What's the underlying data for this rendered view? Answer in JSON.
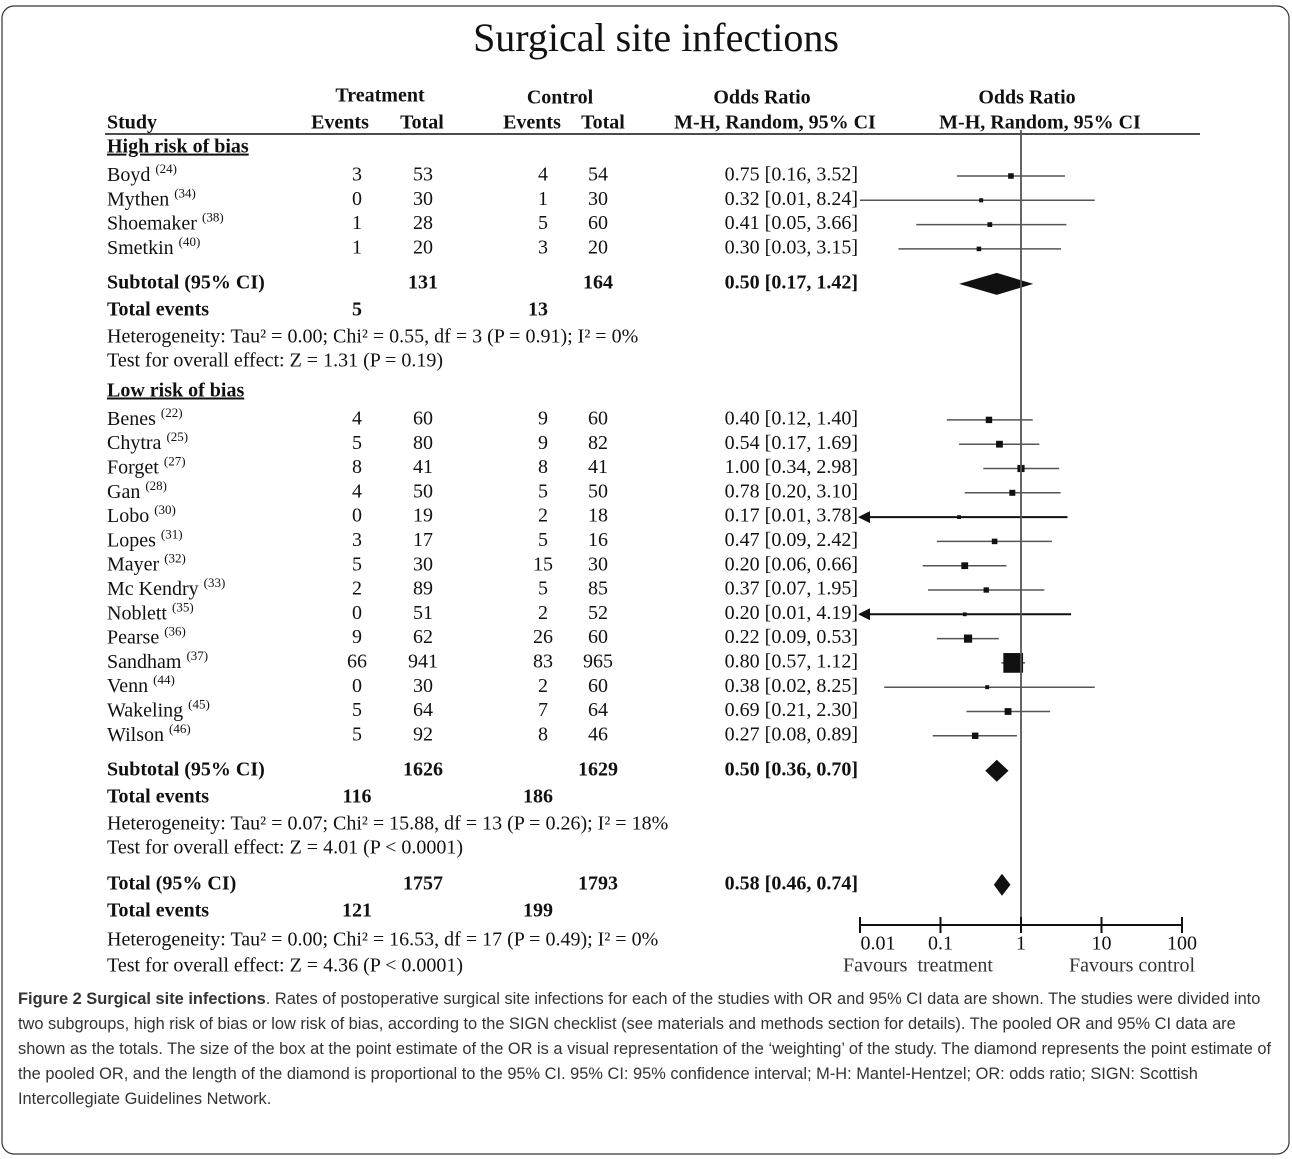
{
  "chart_data": {
    "type": "forest",
    "title": "Surgical site infections",
    "headers": {
      "study": "Study",
      "treatment": "Treatment",
      "control": "Control",
      "events": "Events",
      "total": "Total",
      "or_title": "Odds Ratio",
      "or_method": "M-H, Random, 95% CI"
    },
    "groups": [
      {
        "name": "High risk of bias",
        "studies": [
          {
            "name": "Boyd",
            "ref": "(24)",
            "t_events": 3,
            "t_total": 53,
            "c_events": 4,
            "c_total": 54,
            "or": 0.75,
            "ci": [
              0.16,
              3.52
            ],
            "value_label": "0.75 [0.16, 3.52]",
            "weight": 3
          },
          {
            "name": "Mythen",
            "ref": "(34)",
            "t_events": 0,
            "t_total": 30,
            "c_events": 1,
            "c_total": 30,
            "or": 0.32,
            "ci": [
              0.01,
              8.24
            ],
            "value_label": "0.32 [0.01, 8.24]",
            "weight": 1.6
          },
          {
            "name": "Shoemaker",
            "ref": "(38)",
            "t_events": 1,
            "t_total": 28,
            "c_events": 5,
            "c_total": 60,
            "or": 0.41,
            "ci": [
              0.05,
              3.66
            ],
            "value_label": "0.41 [0.05, 3.66]",
            "weight": 2.2
          },
          {
            "name": "Smetkin",
            "ref": "(40)",
            "t_events": 1,
            "t_total": 20,
            "c_events": 3,
            "c_total": 20,
            "or": 0.3,
            "ci": [
              0.03,
              3.15
            ],
            "value_label": "0.30 [0.03, 3.15]",
            "weight": 2
          }
        ],
        "subtotal": {
          "label": "Subtotal (95% CI)",
          "t_total": 131,
          "c_total": 164,
          "or": 0.5,
          "ci": [
            0.17,
            1.42
          ],
          "value_label": "0.50 [0.17, 1.42]"
        },
        "events": {
          "label": "Total events",
          "t": 5,
          "c": 13
        },
        "heterogeneity": "Heterogeneity: Tau² = 0.00; Chi² = 0.55, df = 3 (P = 0.91); I² = 0%",
        "overall_test": "Test for overall effect: Z = 1.31 (P = 0.19)"
      },
      {
        "name": "Low risk of bias",
        "studies": [
          {
            "name": "Benes",
            "ref": "(22)",
            "t_events": 4,
            "t_total": 60,
            "c_events": 9,
            "c_total": 60,
            "or": 0.4,
            "ci": [
              0.12,
              1.4
            ],
            "value_label": "0.40 [0.12, 1.40]",
            "weight": 4
          },
          {
            "name": "Chytra",
            "ref": "(25)",
            "t_events": 5,
            "t_total": 80,
            "c_events": 9,
            "c_total": 82,
            "or": 0.54,
            "ci": [
              0.17,
              1.69
            ],
            "value_label": "0.54 [0.17, 1.69]",
            "weight": 4.5
          },
          {
            "name": "Forget",
            "ref": "(27)",
            "t_events": 8,
            "t_total": 41,
            "c_events": 8,
            "c_total": 41,
            "or": 1.0,
            "ci": [
              0.34,
              2.98
            ],
            "value_label": "1.00 [0.34, 2.98]",
            "weight": 5
          },
          {
            "name": "Gan",
            "ref": "(28)",
            "t_events": 4,
            "t_total": 50,
            "c_events": 5,
            "c_total": 50,
            "or": 0.78,
            "ci": [
              0.2,
              3.1
            ],
            "value_label": "0.78 [0.20, 3.10]",
            "weight": 3.5
          },
          {
            "name": "Lobo",
            "ref": "(30)",
            "t_events": 0,
            "t_total": 19,
            "c_events": 2,
            "c_total": 18,
            "or": 0.17,
            "ci": [
              0.01,
              3.78
            ],
            "value_label": "0.17 [0.01, 3.78]",
            "weight": 1.4,
            "arrow": "left"
          },
          {
            "name": "Lopes",
            "ref": "(31)",
            "t_events": 3,
            "t_total": 17,
            "c_events": 5,
            "c_total": 16,
            "or": 0.47,
            "ci": [
              0.09,
              2.42
            ],
            "value_label": "0.47 [0.09, 2.42]",
            "weight": 3
          },
          {
            "name": "Mayer",
            "ref": "(32)",
            "t_events": 5,
            "t_total": 30,
            "c_events": 15,
            "c_total": 30,
            "or": 0.2,
            "ci": [
              0.06,
              0.66
            ],
            "value_label": "0.20 [0.06, 0.66]",
            "weight": 4.5
          },
          {
            "name": "Mc Kendry",
            "ref": "(33)",
            "t_events": 2,
            "t_total": 89,
            "c_events": 5,
            "c_total": 85,
            "or": 0.37,
            "ci": [
              0.07,
              1.95
            ],
            "value_label": "0.37 [0.07, 1.95]",
            "weight": 2.8
          },
          {
            "name": "Noblett",
            "ref": "(35)",
            "t_events": 0,
            "t_total": 51,
            "c_events": 2,
            "c_total": 52,
            "or": 0.2,
            "ci": [
              0.01,
              4.19
            ],
            "value_label": "0.20 [0.01, 4.19]",
            "weight": 1.4,
            "arrow": "left"
          },
          {
            "name": "Pearse",
            "ref": "(36)",
            "t_events": 9,
            "t_total": 62,
            "c_events": 26,
            "c_total": 60,
            "or": 0.22,
            "ci": [
              0.09,
              0.53
            ],
            "value_label": "0.22 [0.09, 0.53]",
            "weight": 6.5
          },
          {
            "name": "Sandham",
            "ref": "(37)",
            "t_events": 66,
            "t_total": 941,
            "c_events": 83,
            "c_total": 965,
            "or": 0.8,
            "ci": [
              0.57,
              1.12
            ],
            "value_label": "0.80 [0.57, 1.12]",
            "weight": 38
          },
          {
            "name": "Venn",
            "ref": "(44)",
            "t_events": 0,
            "t_total": 30,
            "c_events": 2,
            "c_total": 60,
            "or": 0.38,
            "ci": [
              0.02,
              8.25
            ],
            "value_label": "0.38 [0.02, 8.25]",
            "weight": 1.5
          },
          {
            "name": "Wakeling",
            "ref": "(45)",
            "t_events": 5,
            "t_total": 64,
            "c_events": 7,
            "c_total": 64,
            "or": 0.69,
            "ci": [
              0.21,
              2.3
            ],
            "value_label": "0.69 [0.21, 2.30]",
            "weight": 4.5
          },
          {
            "name": "Wilson",
            "ref": "(46)",
            "t_events": 5,
            "t_total": 92,
            "c_events": 8,
            "c_total": 46,
            "or": 0.27,
            "ci": [
              0.08,
              0.89
            ],
            "value_label": "0.27 [0.08, 0.89]",
            "weight": 4
          }
        ],
        "subtotal": {
          "label": "Subtotal (95% CI)",
          "t_total": 1626,
          "c_total": 1629,
          "or": 0.5,
          "ci": [
            0.36,
            0.7
          ],
          "value_label": "0.50 [0.36, 0.70]"
        },
        "events": {
          "label": "Total events",
          "t": 116,
          "c": 186
        },
        "heterogeneity": "Heterogeneity: Tau² = 0.07; Chi² = 15.88, df = 13 (P = 0.26); I² = 18%",
        "overall_test": "Test for overall effect: Z = 4.01 (P < 0.0001)"
      }
    ],
    "overall": {
      "label": "Total (95% CI)",
      "t_total": 1757,
      "c_total": 1793,
      "or": 0.58,
      "ci": [
        0.46,
        0.74
      ],
      "value_label": "0.58 [0.46, 0.74]",
      "events": {
        "label": "Total events",
        "t": 121,
        "c": 199
      },
      "heterogeneity": "Heterogeneity: Tau² = 0.00; Chi² = 16.53, df = 17 (P = 0.49); I² = 0%",
      "overall_test": "Test for overall effect: Z = 4.36 (P < 0.0001)"
    },
    "xscale": "log",
    "xlim": [
      0.01,
      100
    ],
    "xticks": [
      0.01,
      0.1,
      1,
      10,
      100
    ],
    "favours": [
      "Favours  treatment",
      "Favours control"
    ],
    "line_color": "#555555",
    "mark_color": "#111111"
  },
  "caption": {
    "bold": "Figure 2 Surgical site infections",
    "text": ". Rates of postoperative surgical site infections for each of the studies with OR and 95% CI data are shown. The studies were divided into two subgroups, high risk of bias or low risk of bias, according to the SIGN checklist (see materials and methods section for details). The pooled OR and 95% CI data are shown as the totals. The size of the box at the point estimate of the OR is a visual representation of the ‘weighting’ of the study. The diamond represents the point estimate of the pooled OR, and the length of the diamond is proportional to the 95% CI. 95% CI: 95% confidence interval; M-H: Mantel-Hentzel; OR: odds ratio; SIGN: Scottish Intercollegiate Guidelines Network."
  }
}
